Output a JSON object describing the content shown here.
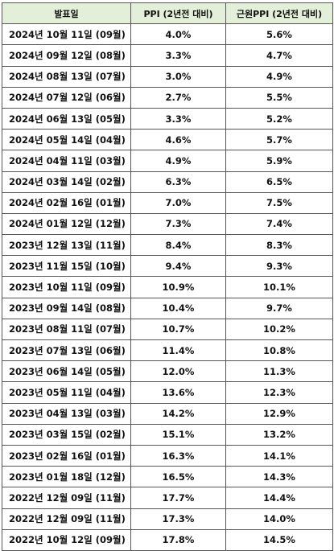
{
  "table": {
    "headers": [
      "발표일",
      "PPI (2년전 대비)",
      "근원PPI (2년전 대비)"
    ],
    "rows": [
      [
        "2024년 10월 11일 (09월)",
        "4.0%",
        "5.6%"
      ],
      [
        "2024년 09월 12일 (08월)",
        "3.3%",
        "4.7%"
      ],
      [
        "2024년 08월 13일 (07월)",
        "3.0%",
        "4.9%"
      ],
      [
        "2024년 07월 12일 (06월)",
        "2.7%",
        "5.5%"
      ],
      [
        "2024년 06월 13일 (05월)",
        "3.3%",
        "5.2%"
      ],
      [
        "2024년 05월 14일 (04월)",
        "4.6%",
        "5.7%"
      ],
      [
        "2024년 04월 11일 (03월)",
        "4.9%",
        "5.9%"
      ],
      [
        "2024년 03월 14일 (02월)",
        "6.3%",
        "6.5%"
      ],
      [
        "2024년 02월 16일 (01월)",
        "7.0%",
        "7.5%"
      ],
      [
        "2024년 01월 12일 (12월)",
        "7.3%",
        "7.4%"
      ],
      [
        "2023년 12월 13일 (11월)",
        "8.4%",
        "8.3%"
      ],
      [
        "2023년 11월 15일 (10월)",
        "9.4%",
        "9.3%"
      ],
      [
        "2023년 10월 11일 (09월)",
        "10.9%",
        "10.1%"
      ],
      [
        "2023년 09월 14일 (08월)",
        "10.4%",
        "9.7%"
      ],
      [
        "2023년 08월 11일 (07월)",
        "10.7%",
        "10.2%"
      ],
      [
        "2023년 07월 13일 (06월)",
        "11.4%",
        "10.8%"
      ],
      [
        "2023년 06월 14일 (05월)",
        "12.0%",
        "11.3%"
      ],
      [
        "2023년 05월 11일 (04월)",
        "13.6%",
        "12.3%"
      ],
      [
        "2023년 04월 13일 (03월)",
        "14.2%",
        "12.9%"
      ],
      [
        "2023년 03월 15일 (02월)",
        "15.1%",
        "13.2%"
      ],
      [
        "2023년 02월 16일 (01월)",
        "16.3%",
        "14.1%"
      ],
      [
        "2023년 01월 18일 (12월)",
        "16.5%",
        "14.3%"
      ],
      [
        "2022년 12월 09일 (11월)",
        "17.7%",
        "14.4%"
      ],
      [
        "2022년 12월 09일 (11월)",
        "17.3%",
        "14.0%"
      ],
      [
        "2022년 10월 12일 (09월)",
        "17.8%",
        "14.5%"
      ]
    ]
  },
  "colors": {
    "header_bg": "#e3efd9",
    "border": "#555555"
  }
}
